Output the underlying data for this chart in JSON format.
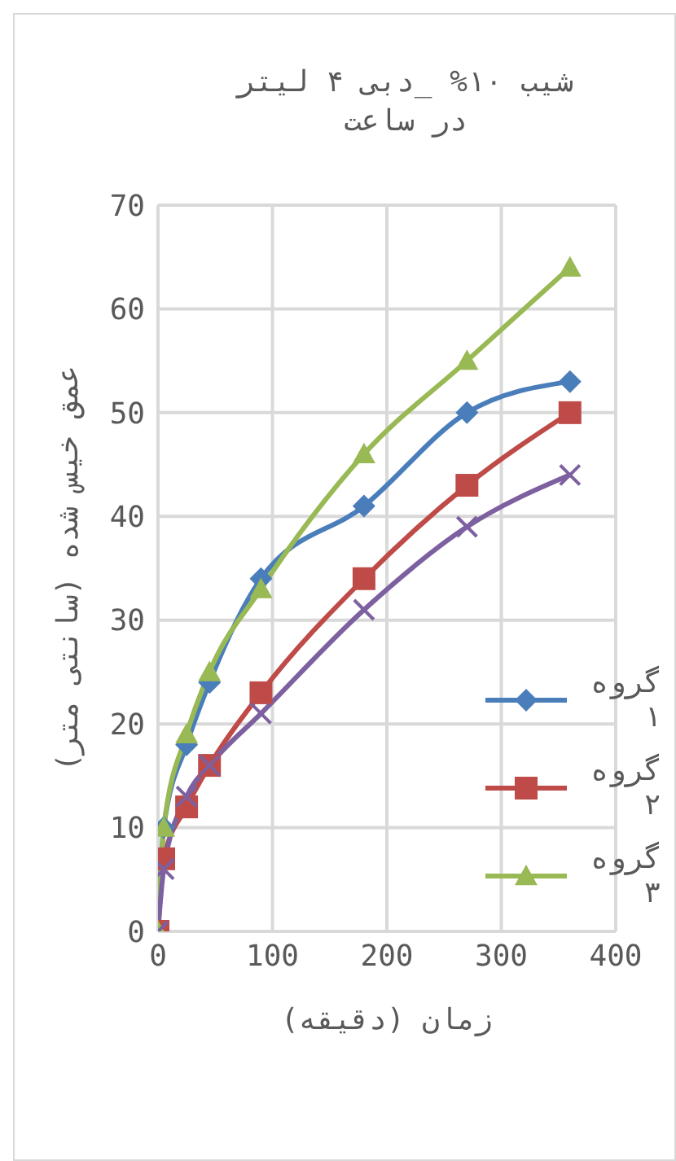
{
  "chart_data": {
    "type": "line",
    "title": "شیب ۱۰% _دبی ۴ لیتر در ساعت",
    "xlabel": "زمان (دقیقه)",
    "ylabel": "عمق خیس شده (سانتی متر)",
    "x": [
      0,
      5,
      25,
      45,
      90,
      180,
      270,
      360
    ],
    "series": [
      {
        "name": "گروه ۱",
        "color": "#4a7ebb",
        "marker": "diamond",
        "values": [
          0,
          10,
          18,
          24,
          34,
          41,
          50,
          53
        ]
      },
      {
        "name": "گروه ۲",
        "color": "#be4b48",
        "marker": "square",
        "values": [
          0,
          7,
          12,
          16,
          23,
          34,
          43,
          50
        ]
      },
      {
        "name": "گروه ۳",
        "color": "#98b954",
        "marker": "triangle",
        "values": [
          0,
          10,
          19,
          25,
          33,
          46,
          55,
          64
        ]
      },
      {
        "color": "#7d60a0",
        "marker": "cross",
        "values": [
          0,
          6,
          13,
          16,
          21,
          31,
          39,
          44
        ]
      }
    ],
    "xlim": [
      0,
      400
    ],
    "xticks": [
      0,
      100,
      200,
      300,
      400
    ],
    "ylim": [
      0,
      70
    ],
    "yticks": [
      0,
      10,
      20,
      30,
      40,
      50,
      60,
      70
    ],
    "grid": true,
    "legend": "right"
  }
}
